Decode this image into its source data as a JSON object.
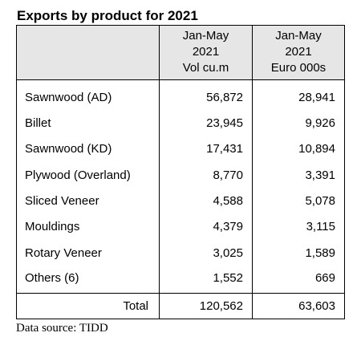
{
  "chart_data": {
    "type": "table",
    "title": "Exports by product for 2021",
    "columns": [
      {
        "period": "Jan-May",
        "year": "2021",
        "unit": "Vol cu.m"
      },
      {
        "period": "Jan-May",
        "year": "2021",
        "unit": "Euro 000s"
      }
    ],
    "rows": [
      {
        "product": "Sawnwood (AD)",
        "volume": "56,872",
        "value": "28,941"
      },
      {
        "product": "Billet",
        "volume": "23,945",
        "value": "9,926"
      },
      {
        "product": "Sawnwood (KD)",
        "volume": "17,431",
        "value": "10,894"
      },
      {
        "product": "Plywood (Overland)",
        "volume": "8,770",
        "value": "3,391"
      },
      {
        "product": "Sliced Veneer",
        "volume": "4,588",
        "value": "5,078"
      },
      {
        "product": "Mouldings",
        "volume": "4,379",
        "value": "3,115"
      },
      {
        "product": "Rotary Veneer",
        "volume": "3,025",
        "value": "1,589"
      },
      {
        "product": "Others (6)",
        "volume": "1,552",
        "value": "669"
      }
    ],
    "total": {
      "label": "Total",
      "volume": "120,562",
      "value": "63,603"
    },
    "source": "Data source: TIDD"
  }
}
